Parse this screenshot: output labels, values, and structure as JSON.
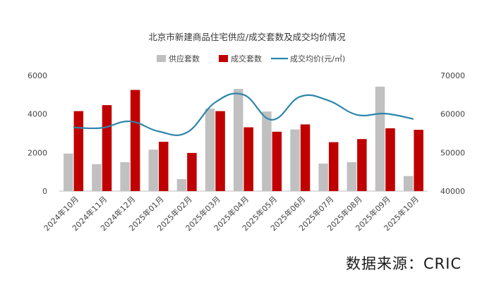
{
  "chart_data": {
    "type": "bar+line",
    "title": "北京市新建商品住宅供应/成交套数及成交均价情况",
    "categories": [
      "2024年10月",
      "2024年11月",
      "2024年12月",
      "2025年01月",
      "2025年02月",
      "2025年03月",
      "2025年04月",
      "2025年05月",
      "2025年06月",
      "2025年07月",
      "2025年08月",
      "2025年09月",
      "2025年10月"
    ],
    "series": [
      {
        "name": "供应套数",
        "kind": "bar",
        "axis": "left",
        "color": "#c0c0c0",
        "values": [
          1950,
          1400,
          1500,
          2150,
          620,
          4280,
          5300,
          4130,
          3200,
          1430,
          1500,
          5420,
          780
        ]
      },
      {
        "name": "成交套数",
        "kind": "bar",
        "axis": "left",
        "color": "#c00000",
        "values": [
          4150,
          4460,
          5250,
          2560,
          1980,
          4150,
          3310,
          3080,
          3460,
          2540,
          2700,
          3260,
          3180
        ]
      },
      {
        "name": "成交均价(元/㎡)",
        "kind": "line",
        "axis": "right",
        "color": "#2e86ab",
        "values": [
          56500,
          56400,
          58100,
          55500,
          55200,
          63000,
          65000,
          58500,
          64500,
          63500,
          59800,
          60100,
          58700
        ]
      }
    ],
    "y_left": {
      "min": 0,
      "max": 6000,
      "ticks": [
        0,
        2000,
        4000,
        6000
      ]
    },
    "y_right": {
      "min": 40000,
      "max": 70000,
      "ticks": [
        40000,
        50000,
        60000,
        70000
      ]
    },
    "legend_position": "top-center"
  },
  "source_text": "数据来源：CRIC"
}
